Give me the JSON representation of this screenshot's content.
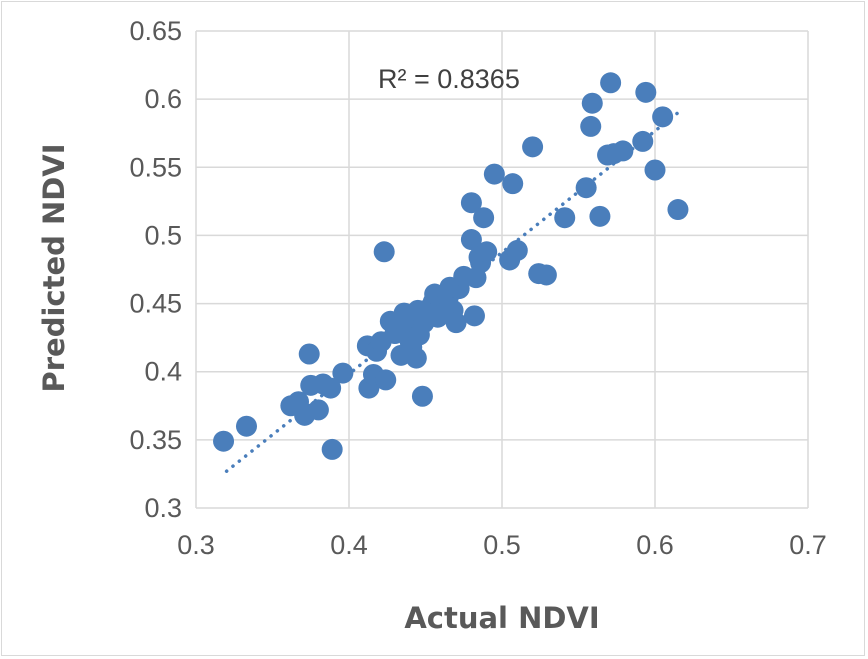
{
  "chart_data": {
    "type": "scatter",
    "title": "",
    "xlabel": "Actual NDVI",
    "ylabel": "Predicted NDVI",
    "xlim": [
      0.3,
      0.7
    ],
    "ylim": [
      0.3,
      0.65
    ],
    "xticks": [
      "0.3",
      "0.4",
      "0.5",
      "0.6",
      "0.7"
    ],
    "yticks": [
      "0.3",
      "0.35",
      "0.4",
      "0.45",
      "0.5",
      "0.55",
      "0.6",
      "0.65"
    ],
    "grid": true,
    "legend": "none",
    "annotation": "R² = 0.8365",
    "colors": {
      "points": "#4a7ebb",
      "trendline": "#4a7ebb",
      "grid": "#d9d9d9",
      "text": "#595959"
    },
    "trendline": {
      "style": "dotted",
      "x": [
        0.32,
        0.615
      ],
      "y": [
        0.327,
        0.59
      ]
    },
    "points": [
      [
        0.318,
        0.349
      ],
      [
        0.333,
        0.36
      ],
      [
        0.362,
        0.375
      ],
      [
        0.367,
        0.378
      ],
      [
        0.371,
        0.368
      ],
      [
        0.375,
        0.39
      ],
      [
        0.374,
        0.413
      ],
      [
        0.38,
        0.372
      ],
      [
        0.383,
        0.391
      ],
      [
        0.388,
        0.388
      ],
      [
        0.389,
        0.343
      ],
      [
        0.396,
        0.399
      ],
      [
        0.412,
        0.419
      ],
      [
        0.413,
        0.388
      ],
      [
        0.416,
        0.398
      ],
      [
        0.418,
        0.415
      ],
      [
        0.421,
        0.422
      ],
      [
        0.423,
        0.488
      ],
      [
        0.424,
        0.394
      ],
      [
        0.427,
        0.437
      ],
      [
        0.43,
        0.428
      ],
      [
        0.434,
        0.412
      ],
      [
        0.436,
        0.443
      ],
      [
        0.438,
        0.432
      ],
      [
        0.44,
        0.422
      ],
      [
        0.441,
        0.418
      ],
      [
        0.443,
        0.44
      ],
      [
        0.444,
        0.41
      ],
      [
        0.445,
        0.445
      ],
      [
        0.446,
        0.427
      ],
      [
        0.448,
        0.382
      ],
      [
        0.449,
        0.436
      ],
      [
        0.451,
        0.441
      ],
      [
        0.453,
        0.447
      ],
      [
        0.455,
        0.451
      ],
      [
        0.456,
        0.457
      ],
      [
        0.458,
        0.44
      ],
      [
        0.46,
        0.448
      ],
      [
        0.462,
        0.443
      ],
      [
        0.465,
        0.455
      ],
      [
        0.466,
        0.462
      ],
      [
        0.468,
        0.445
      ],
      [
        0.47,
        0.436
      ],
      [
        0.472,
        0.461
      ],
      [
        0.475,
        0.47
      ],
      [
        0.48,
        0.497
      ],
      [
        0.48,
        0.524
      ],
      [
        0.482,
        0.441
      ],
      [
        0.483,
        0.469
      ],
      [
        0.485,
        0.484
      ],
      [
        0.486,
        0.48
      ],
      [
        0.488,
        0.513
      ],
      [
        0.49,
        0.488
      ],
      [
        0.495,
        0.545
      ],
      [
        0.505,
        0.482
      ],
      [
        0.507,
        0.538
      ],
      [
        0.51,
        0.489
      ],
      [
        0.52,
        0.565
      ],
      [
        0.524,
        0.472
      ],
      [
        0.529,
        0.471
      ],
      [
        0.541,
        0.513
      ],
      [
        0.555,
        0.535
      ],
      [
        0.558,
        0.58
      ],
      [
        0.559,
        0.597
      ],
      [
        0.564,
        0.514
      ],
      [
        0.569,
        0.559
      ],
      [
        0.571,
        0.612
      ],
      [
        0.573,
        0.56
      ],
      [
        0.579,
        0.562
      ],
      [
        0.592,
        0.569
      ],
      [
        0.594,
        0.605
      ],
      [
        0.6,
        0.548
      ],
      [
        0.605,
        0.587
      ],
      [
        0.615,
        0.519
      ]
    ]
  }
}
